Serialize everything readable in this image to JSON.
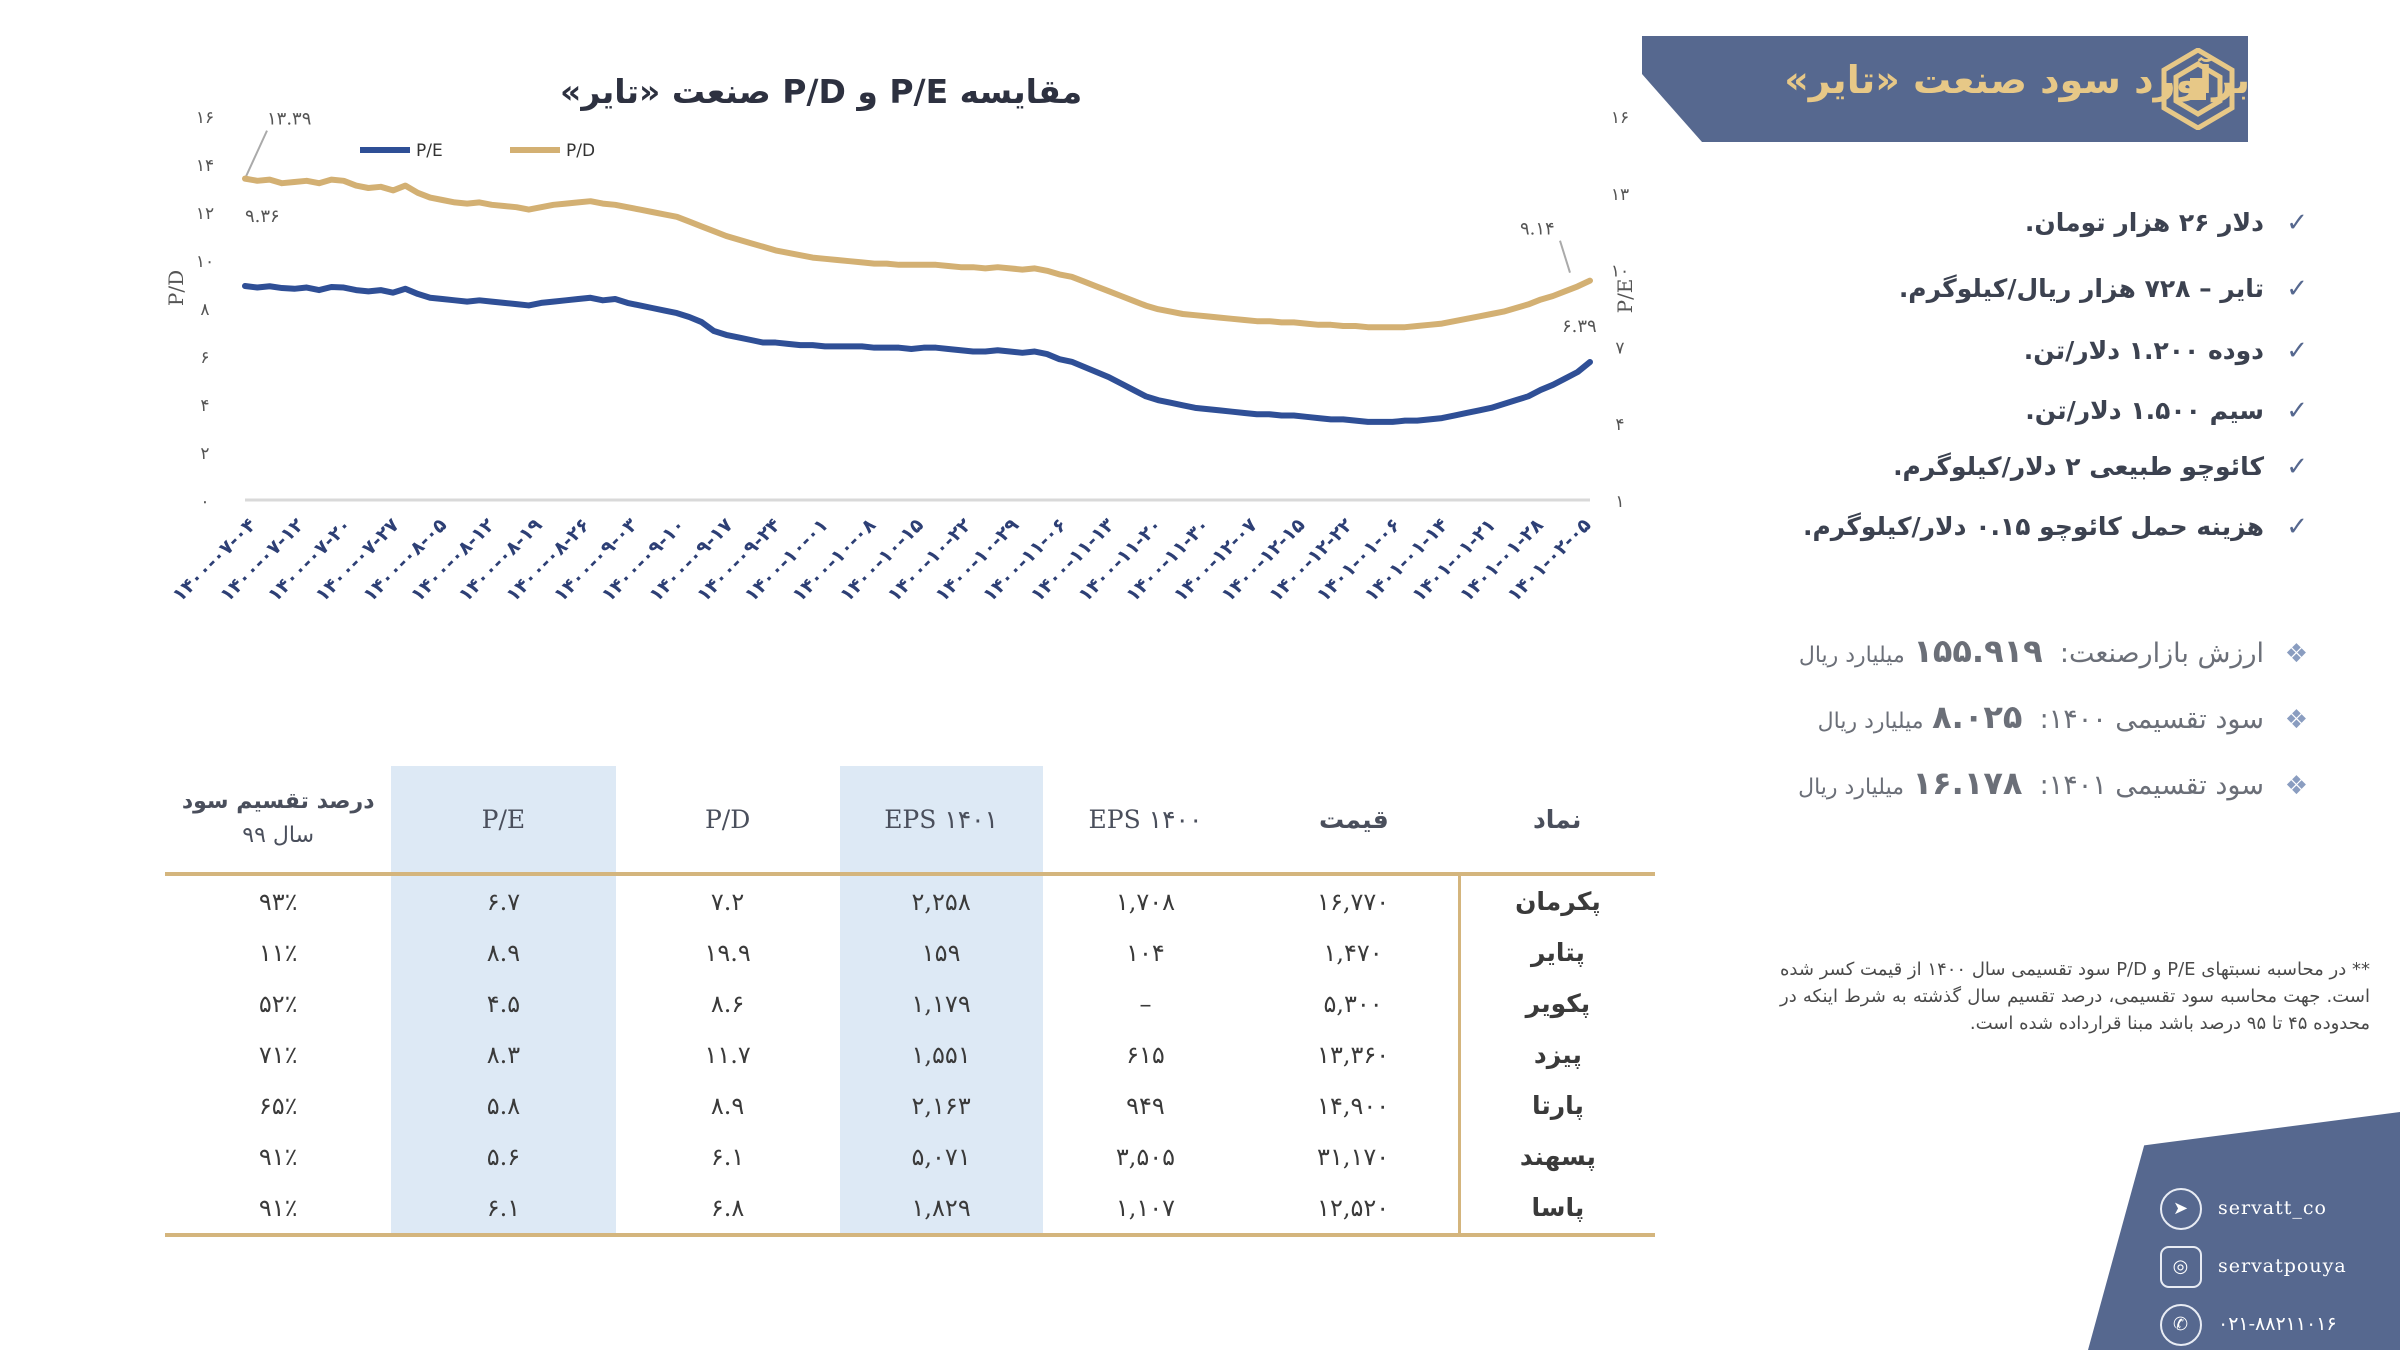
{
  "header": {
    "title": "برآورد سود صنعت «تایر»",
    "colors": {
      "banner": "#56688f",
      "title_text": "#e7c887"
    }
  },
  "assumptions": [
    "دلار ۲۶ هزار تومان.",
    "تایر – ۷۲۸ هزار ریال/کیلوگرم.",
    "دوده ۱.۲۰۰ دلار/تن.",
    "سیم ۱.۵۰۰ دلار/تن.",
    "کائوچو طبیعی ۲ دلار/کیلوگرم.",
    "هزینه حمل کائوچو ۰.۱۵ دلار/کیلوگرم."
  ],
  "stats": [
    {
      "label": "ارزش بازارصنعت:",
      "value": "۱۵۵.۹۱۹",
      "unit": "میلیارد ریال"
    },
    {
      "label": "سود تقسیمی ۱۴۰۰:",
      "value": "۸.۰۲۵",
      "unit": "میلیارد ریال"
    },
    {
      "label": "سود تقسیمی ۱۴۰۱:",
      "value": "۱۶.۱۷۸",
      "unit": "میلیارد ریال"
    }
  ],
  "note": "** در محاسبه نسبتهای P/E و P/D سود تقسیمی سال ۱۴۰۰ از قیمت کسر شده است. جهت محاسبه سود تقسیمی، درصد تقسیم سال گذشته به شرط اینکه در محدوده ۴۵ تا ۹۵ درصد باشد مبنا قرارداده شده است.",
  "chart_data": {
    "type": "line",
    "title": "مقایسه P/E و P/D صنعت «تایر»",
    "ylabel_left": "P/D",
    "ylabel_right": "P/E",
    "yticks_left": [
      "۰",
      "۲",
      "۴",
      "۶",
      "۸",
      "۱۰",
      "۱۲",
      "۱۴",
      "۱۶"
    ],
    "yticks_right": [
      "۱",
      "۴",
      "۷",
      "۱۰",
      "۱۳",
      "۱۶"
    ],
    "ylim_left": [
      0,
      16
    ],
    "ylim_right": [
      1,
      16
    ],
    "x_ticks": [
      "۱۴۰۰-۰۷-۰۴",
      "۱۴۰۰-۰۷-۱۲",
      "۱۴۰۰-۰۷-۲۰",
      "۱۴۰۰-۰۷-۲۷",
      "۱۴۰۰-۰۸-۰۵",
      "۱۴۰۰-۰۸-۱۲",
      "۱۴۰۰-۰۸-۱۹",
      "۱۴۰۰-۰۸-۲۶",
      "۱۴۰۰-۰۹-۰۳",
      "۱۴۰۰-۰۹-۱۰",
      "۱۴۰۰-۰۹-۱۷",
      "۱۴۰۰-۰۹-۲۴",
      "۱۴۰۰-۱۰-۰۱",
      "۱۴۰۰-۱۰-۰۸",
      "۱۴۰۰-۱۰-۱۵",
      "۱۴۰۰-۱۰-۲۲",
      "۱۴۰۰-۱۰-۲۹",
      "۱۴۰۰-۱۱-۰۶",
      "۱۴۰۰-۱۱-۱۳",
      "۱۴۰۰-۱۱-۲۰",
      "۱۴۰۰-۱۱-۳۰",
      "۱۴۰۰-۱۲-۰۷",
      "۱۴۰۰-۱۲-۱۵",
      "۱۴۰۰-۱۲-۲۲",
      "۱۴۰۱-۰۱-۰۶",
      "۱۴۰۱-۰۱-۱۴",
      "۱۴۰۱-۰۱-۲۱",
      "۱۴۰۱-۰۱-۲۸",
      "۱۴۰۱-۰۲-۰۵"
    ],
    "legend": [
      "P/E",
      "P/D"
    ],
    "legend_position": "top-left",
    "series": [
      {
        "name": "P/E",
        "color": "#2f4f96",
        "axis": "right",
        "values": [
          9.36,
          9.3,
          9.35,
          9.28,
          9.25,
          9.3,
          9.2,
          9.32,
          9.3,
          9.2,
          9.15,
          9.2,
          9.1,
          9.25,
          9.05,
          8.9,
          8.85,
          8.8,
          8.75,
          8.8,
          8.75,
          8.7,
          8.65,
          8.6,
          8.7,
          8.75,
          8.8,
          8.85,
          8.9,
          8.8,
          8.85,
          8.7,
          8.6,
          8.5,
          8.4,
          8.3,
          8.15,
          7.95,
          7.6,
          7.45,
          7.35,
          7.25,
          7.15,
          7.15,
          7.1,
          7.05,
          7.05,
          7.0,
          7.0,
          7.0,
          7.0,
          6.95,
          6.95,
          6.95,
          6.9,
          6.95,
          6.95,
          6.9,
          6.85,
          6.8,
          6.8,
          6.85,
          6.8,
          6.75,
          6.8,
          6.7,
          6.5,
          6.4,
          6.2,
          6.0,
          5.8,
          5.55,
          5.3,
          5.05,
          4.9,
          4.8,
          4.7,
          4.6,
          4.55,
          4.5,
          4.45,
          4.4,
          4.35,
          4.35,
          4.3,
          4.3,
          4.25,
          4.2,
          4.15,
          4.15,
          4.1,
          4.05,
          4.05,
          4.05,
          4.1,
          4.1,
          4.15,
          4.2,
          4.3,
          4.4,
          4.5,
          4.6,
          4.75,
          4.9,
          5.05,
          5.3,
          5.5,
          5.75,
          6.0,
          6.39
        ]
      },
      {
        "name": "P/D",
        "color": "#d3b073",
        "axis": "left",
        "values": [
          13.39,
          13.3,
          13.35,
          13.2,
          13.25,
          13.3,
          13.2,
          13.35,
          13.3,
          13.1,
          13.0,
          13.05,
          12.9,
          13.1,
          12.8,
          12.6,
          12.5,
          12.4,
          12.35,
          12.4,
          12.3,
          12.25,
          12.2,
          12.1,
          12.2,
          12.3,
          12.35,
          12.4,
          12.45,
          12.35,
          12.3,
          12.2,
          12.1,
          12.0,
          11.9,
          11.8,
          11.6,
          11.4,
          11.2,
          11.0,
          10.85,
          10.7,
          10.55,
          10.4,
          10.3,
          10.2,
          10.1,
          10.05,
          10.0,
          9.95,
          9.9,
          9.85,
          9.85,
          9.8,
          9.8,
          9.8,
          9.8,
          9.75,
          9.7,
          9.7,
          9.65,
          9.7,
          9.65,
          9.6,
          9.65,
          9.55,
          9.4,
          9.3,
          9.1,
          8.9,
          8.7,
          8.5,
          8.3,
          8.1,
          7.95,
          7.85,
          7.75,
          7.7,
          7.65,
          7.6,
          7.55,
          7.5,
          7.45,
          7.45,
          7.4,
          7.4,
          7.35,
          7.3,
          7.3,
          7.25,
          7.25,
          7.2,
          7.2,
          7.2,
          7.2,
          7.25,
          7.3,
          7.35,
          7.45,
          7.55,
          7.65,
          7.75,
          7.85,
          8.0,
          8.15,
          8.35,
          8.5,
          8.7,
          8.9,
          9.14
        ]
      }
    ],
    "annotations": [
      {
        "text": "۱۳.۳۹",
        "series": "P/D",
        "at": "start"
      },
      {
        "text": "۹.۳۶",
        "series": "P/E",
        "at": "start"
      },
      {
        "text": "۹.۱۴",
        "series": "P/D",
        "at": "end"
      },
      {
        "text": "۶.۳۹",
        "series": "P/E",
        "at": "end"
      }
    ]
  },
  "table": {
    "headers": {
      "symbol": "نماد",
      "price": "قیمت",
      "eps1400": "EPS ۱۴۰۰",
      "eps1401": "EPS ۱۴۰۱",
      "pd": "P/D",
      "pe": "P/E",
      "dividend_line1": "درصد تقسیم سود",
      "dividend_line2": "سال ۹۹"
    },
    "rows": [
      {
        "symbol": "پکرمان",
        "price": "۱۶,۷۷۰",
        "eps1400": "۱,۷۰۸",
        "eps1401": "۲,۲۵۸",
        "pd": "۷.۲",
        "pe": "۶.۷",
        "dividend": "۹۳٪"
      },
      {
        "symbol": "پتایر",
        "price": "۱,۴۷۰",
        "eps1400": "۱۰۴",
        "eps1401": "۱۵۹",
        "pd": "۱۹.۹",
        "pe": "۸.۹",
        "dividend": "۱۱٪"
      },
      {
        "symbol": "پکویر",
        "price": "۵,۳۰۰",
        "eps1400": "–",
        "eps1401": "۱,۱۷۹",
        "pd": "۸.۶",
        "pe": "۴.۵",
        "dividend": "۵۲٪"
      },
      {
        "symbol": "پیزد",
        "price": "۱۳,۳۶۰",
        "eps1400": "۶۱۵",
        "eps1401": "۱,۵۵۱",
        "pd": "۱۱.۷",
        "pe": "۸.۳",
        "dividend": "۷۱٪"
      },
      {
        "symbol": "پارتا",
        "price": "۱۴,۹۰۰",
        "eps1400": "۹۴۹",
        "eps1401": "۲,۱۶۳",
        "pd": "۸.۹",
        "pe": "۵.۸",
        "dividend": "۶۵٪"
      },
      {
        "symbol": "پسهند",
        "price": "۳۱,۱۷۰",
        "eps1400": "۳,۵۰۵",
        "eps1401": "۵,۰۷۱",
        "pd": "۶.۱",
        "pe": "۵.۶",
        "dividend": "۹۱٪"
      },
      {
        "symbol": "پاسا",
        "price": "۱۲,۵۲۰",
        "eps1400": "۱,۱۰۷",
        "eps1401": "۱,۸۲۹",
        "pd": "۶.۸",
        "pe": "۶.۱",
        "dividend": "۹۱٪"
      }
    ]
  },
  "footer": {
    "telegram": "servatt_co",
    "instagram": "servatpouya",
    "phone": "۰۲۱-۸۸۲۱۱۰۱۶",
    "icons": [
      "telegram-icon",
      "instagram-icon",
      "phone-icon"
    ]
  }
}
